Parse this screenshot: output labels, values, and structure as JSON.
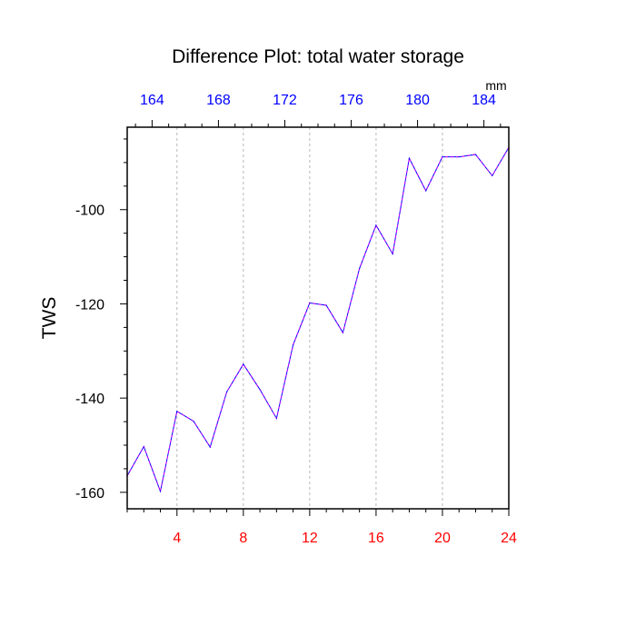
{
  "chart_data": {
    "type": "line",
    "title": "Difference Plot: total water storage",
    "ylabel": "TWS",
    "unit_label": "mm",
    "x_bottom": {
      "range": [
        1,
        24
      ],
      "major_ticks": [
        4,
        8,
        12,
        16,
        20,
        24
      ],
      "tick_labels": [
        "4",
        "8",
        "12",
        "16",
        "20",
        "24"
      ],
      "label_color": "#ff0000"
    },
    "x_top": {
      "range": [
        162.5,
        185.5
      ],
      "major_ticks": [
        164,
        168,
        172,
        176,
        180,
        184
      ],
      "tick_labels": [
        "164",
        "168",
        "172",
        "176",
        "180",
        "184"
      ],
      "label_color": "#0000ff"
    },
    "y": {
      "range": [
        -163.5,
        -82.5
      ],
      "major_ticks": [
        -160,
        -140,
        -120,
        -100
      ],
      "tick_labels": [
        "-160",
        "-140",
        "-120",
        "-100"
      ]
    },
    "grid": "vertical dashed at bottom major ticks",
    "series": [
      {
        "x": [
          1,
          2,
          3,
          4,
          5,
          6,
          7,
          8,
          9,
          10,
          11,
          12,
          13,
          14,
          15,
          16,
          17,
          18,
          19,
          20,
          21,
          22,
          23,
          24
        ],
        "values": [
          -156.5,
          -150.3,
          -159.8,
          -142.8,
          -144.9,
          -150.4,
          -138.7,
          -132.8,
          -138.2,
          -144.3,
          -128.7,
          -119.8,
          -120.3,
          -126.1,
          -112.5,
          -103.3,
          -109.4,
          -89.1,
          -96.0,
          -88.8,
          -88.8,
          -88.3,
          -92.8,
          -86.8
        ],
        "line_color": "#0000ff",
        "dash_color": "#cc00ff"
      }
    ]
  }
}
